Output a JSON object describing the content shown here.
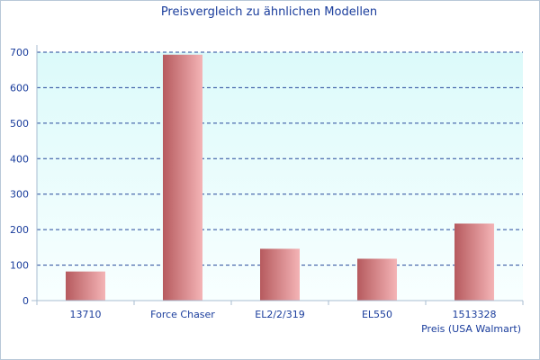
{
  "chart_data": {
    "type": "bar",
    "title": "Preisvergleich zu ähnlichen Modellen",
    "xlabel": "Preis (USA Walmart)",
    "ylabel": "",
    "categories": [
      "13710",
      "Force Chaser",
      "EL2/2/319",
      "EL550",
      "1513328"
    ],
    "values": [
      82,
      693,
      146,
      118,
      217
    ],
    "ylim": [
      0,
      700
    ],
    "yticks": [
      0,
      100,
      200,
      300,
      400,
      500,
      600,
      700
    ],
    "grid": true,
    "legend": "none"
  },
  "colors": {
    "text": "#1a3d9c",
    "grid": "#24479a",
    "bar_dark": "#b65a5e",
    "bar_light": "#f4b4b6",
    "plot_top": "#dcfafa",
    "plot_bottom": "#f8ffff",
    "axis": "#a8bcd0"
  }
}
